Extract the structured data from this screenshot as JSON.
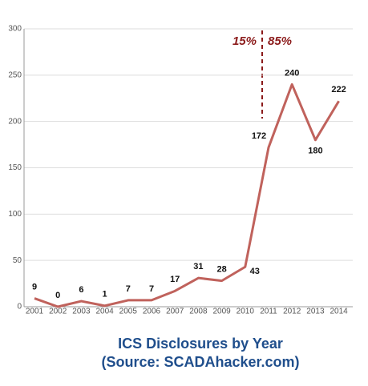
{
  "chart_data": {
    "type": "line",
    "title": "ICS Disclosures by Year",
    "subtitle": "(Source: SCADAhacker.com)",
    "categories": [
      "2001",
      "2002",
      "2003",
      "2004",
      "2005",
      "2006",
      "2007",
      "2008",
      "2009",
      "2010",
      "2011",
      "2012",
      "2013",
      "2014"
    ],
    "values": [
      9,
      0,
      6,
      1,
      7,
      7,
      17,
      31,
      28,
      43,
      172,
      240,
      180,
      222
    ],
    "color": "#c0625c",
    "annotations": [
      "15%",
      "85%"
    ],
    "ylim": [
      0,
      300
    ],
    "yticks": [
      0,
      50,
      100,
      150,
      200,
      250,
      300
    ],
    "grid": true
  }
}
